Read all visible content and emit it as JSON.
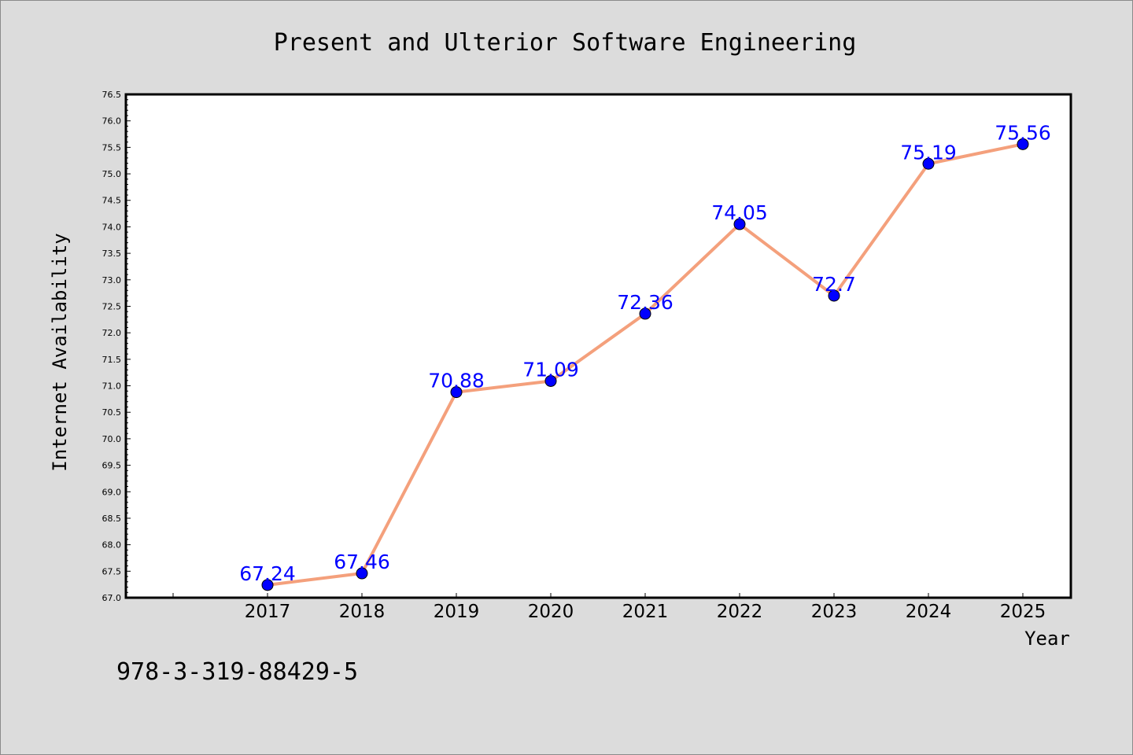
{
  "chart_data": {
    "type": "line",
    "title": "Present and Ulterior Software Engineering",
    "xlabel": "Year",
    "ylabel": "Internet Availability",
    "categories": [
      "2017",
      "2018",
      "2019",
      "2020",
      "2021",
      "2022",
      "2023",
      "2024",
      "2025"
    ],
    "series": [
      {
        "values": [
          67.24,
          67.46,
          70.88,
          71.09,
          72.36,
          74.05,
          72.7,
          75.19,
          75.56
        ],
        "data_labels": [
          "67.24",
          "67.46",
          "70.88",
          "71.09",
          "72.36",
          "74.05",
          "72.7",
          "75.19",
          "75.56"
        ]
      }
    ],
    "ylim": [
      67.0,
      76.5
    ],
    "yticks": [
      "67.0",
      "67.5",
      "68.0",
      "68.5",
      "69.0",
      "69.5",
      "70.0",
      "70.5",
      "71.0",
      "71.5",
      "72.0",
      "72.5",
      "73.0",
      "73.5",
      "74.0",
      "74.5",
      "75.0",
      "75.5",
      "76.0",
      "76.5"
    ],
    "grid": false,
    "line_color": "#f4a07c",
    "marker_color": "#0000ff",
    "label_color": "#0000ff"
  },
  "caption": "978-3-319-88429-5",
  "colors": {
    "background": "#dcdcdc",
    "plot_area": "#ffffff"
  }
}
